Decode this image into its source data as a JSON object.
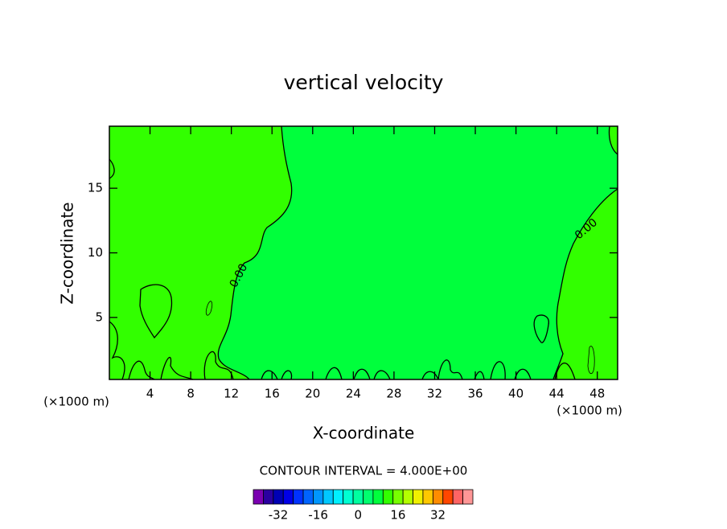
{
  "chart_data": {
    "type": "contour",
    "title": "vertical velocity",
    "x_label": "X-coordinate",
    "y_label": "Z-coordinate",
    "y_unit_label": "(×1000 m)",
    "x_unit_label": "(×1000 m)",
    "xlim": [
      0,
      50
    ],
    "xticks": [
      4,
      8,
      12,
      16,
      20,
      24,
      28,
      32,
      36,
      40,
      44,
      48
    ],
    "ylim": [
      0.2,
      19.8
    ],
    "yticks": [
      5,
      10,
      15
    ],
    "contour_labels": [
      "0.00",
      "0.00"
    ],
    "contour_interval": "CONTOUR INTERVAL = 4.000E+00",
    "colorbar": {
      "levels": [
        -40,
        -36,
        -32,
        -28,
        -24,
        -20,
        -16,
        -12,
        -8,
        -4,
        0,
        4,
        8,
        12,
        16,
        20,
        24,
        28,
        32,
        36,
        40,
        44
      ],
      "colors": [
        "#7a00b0",
        "#2a00a0",
        "#0000b4",
        "#0000e6",
        "#0032ff",
        "#0064ff",
        "#0096ff",
        "#00c8ff",
        "#00f0ff",
        "#00ffd2",
        "#00ffa0",
        "#00ff6e",
        "#00ff3c",
        "#32ff00",
        "#78ff00",
        "#b4ff00",
        "#f0f000",
        "#ffc800",
        "#ff8c00",
        "#ff4600",
        "#ff6464",
        "#ff9696"
      ],
      "ticks": [
        -32,
        -16,
        0,
        16,
        32
      ]
    }
  }
}
